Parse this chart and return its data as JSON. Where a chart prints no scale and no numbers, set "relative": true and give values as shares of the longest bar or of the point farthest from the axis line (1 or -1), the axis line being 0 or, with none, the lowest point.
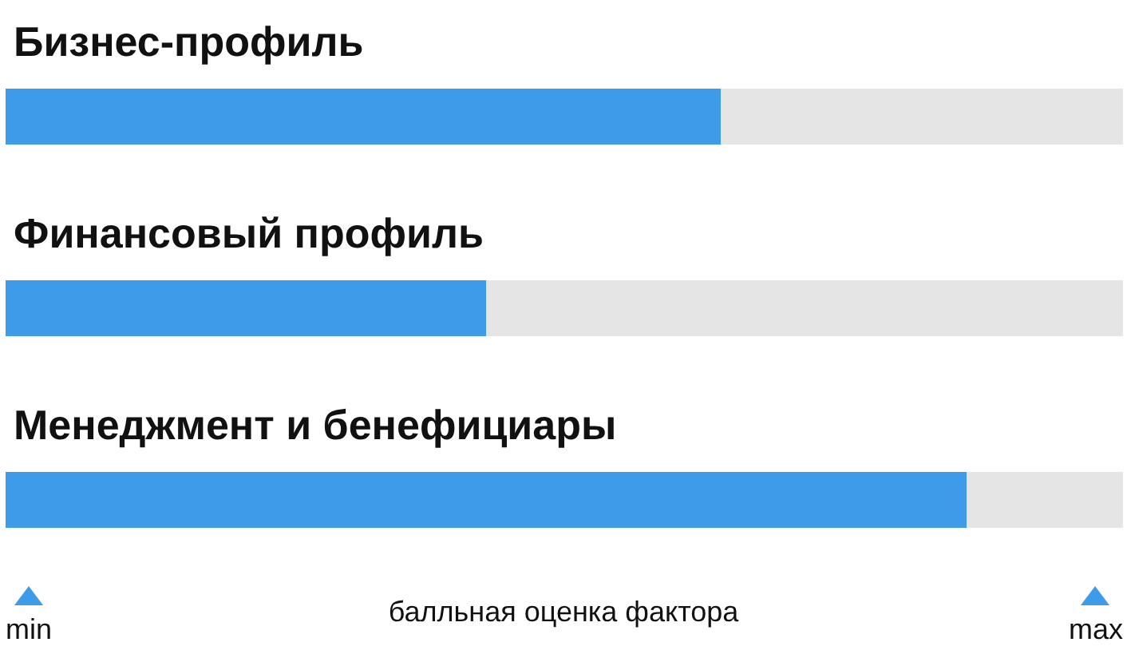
{
  "chart_data": {
    "type": "bar",
    "orientation": "horizontal",
    "stacked": true,
    "relative": true,
    "categories": [
      "Бизнес-профиль",
      "Финансовый профиль",
      "Менеджмент и бенефициары"
    ],
    "series": [
      {
        "color": "#3d9be9",
        "values": [
          0.64,
          0.43,
          0.86
        ]
      },
      {
        "color": "#e5e5e5",
        "values": [
          0.36,
          0.57,
          0.14
        ]
      }
    ],
    "xlabel": "балльная оценка фактора",
    "annotations": [
      "min",
      "max"
    ]
  }
}
